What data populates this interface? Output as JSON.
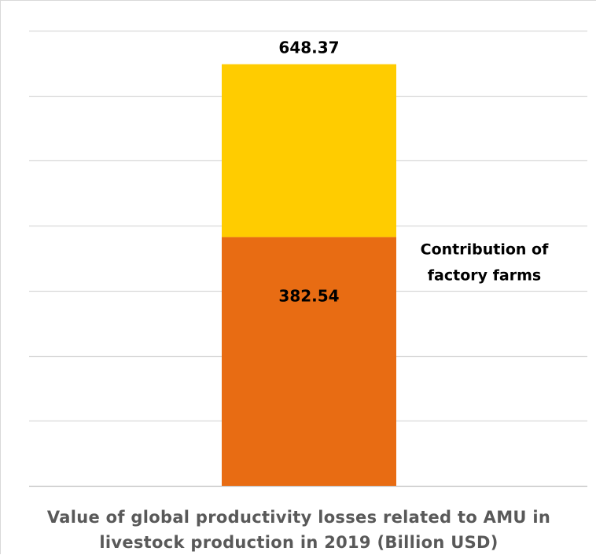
{
  "chart_data": {
    "type": "bar",
    "stacked": true,
    "categories": [
      ""
    ],
    "series": [
      {
        "name": "",
        "values": [
          382.54
        ],
        "color": "#E86C13"
      },
      {
        "name": "",
        "values": [
          265.83
        ],
        "color": "#FFCC00"
      }
    ],
    "total_label": "648.37",
    "segment_label": "382.54",
    "annotation_lines": [
      "Contribution of",
      "factory farms"
    ],
    "xlabel_lines": [
      "Value of global productivity losses related to AMU in",
      "livestock production in 2019 (Billion USD)"
    ],
    "ylim": [
      0,
      700
    ],
    "grid_step": 100,
    "grid": true,
    "y_axis_visible": false
  }
}
